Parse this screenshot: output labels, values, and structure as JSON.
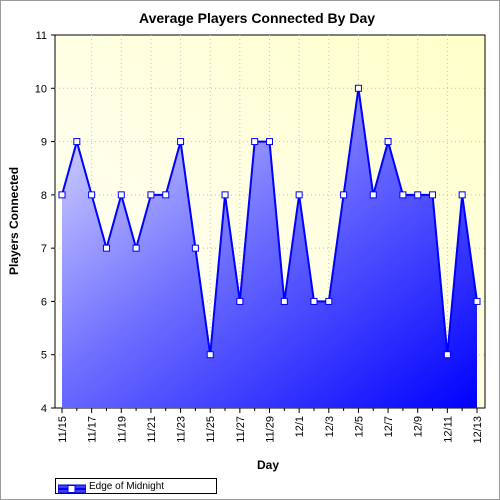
{
  "chart_data": {
    "type": "area",
    "title": "Average Players Connected By Day",
    "xlabel": "Day",
    "ylabel": "Players Connected",
    "ylim": [
      4,
      11
    ],
    "yticks": [
      4,
      5,
      6,
      7,
      8,
      9,
      10,
      11
    ],
    "x": [
      "11/15",
      "11/16",
      "11/17",
      "11/18",
      "11/19",
      "11/20",
      "11/21",
      "11/22",
      "11/23",
      "11/24",
      "11/25",
      "11/26",
      "11/27",
      "11/28",
      "11/29",
      "11/30",
      "12/1",
      "12/2",
      "12/3",
      "12/4",
      "12/5",
      "12/6",
      "12/7",
      "12/8",
      "12/9",
      "12/10",
      "12/11",
      "12/12",
      "12/13"
    ],
    "x_tick_labels": [
      "11/15",
      "11/17",
      "11/19",
      "11/21",
      "11/23",
      "11/25",
      "11/27",
      "11/29",
      "12/1",
      "12/3",
      "12/5",
      "12/7",
      "12/9",
      "12/11",
      "12/13"
    ],
    "series": [
      {
        "name": "Edge of Midnight",
        "values": [
          8,
          9,
          8,
          7,
          8,
          7,
          8,
          8,
          9,
          7,
          5,
          8,
          6,
          9,
          9,
          6,
          8,
          6,
          6,
          8,
          10,
          8,
          9,
          8,
          8,
          8,
          5,
          8,
          6
        ]
      }
    ],
    "grid": true,
    "legend_position": "bottom-left",
    "colors": {
      "line": "#0000ff",
      "fill_light": "#d8d8ff",
      "fill_dark": "#0000ff",
      "plot_bg_light": "#fffff0",
      "plot_bg_dark": "#ffffc8",
      "grid": "#c8c8a0"
    }
  }
}
